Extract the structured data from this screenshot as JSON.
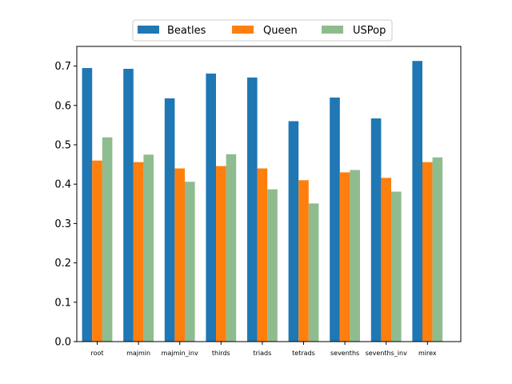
{
  "chart_data": {
    "type": "bar",
    "categories": [
      "root",
      "majmin",
      "majmin_inv",
      "thirds",
      "triads",
      "tetrads",
      "sevenths",
      "sevenths_inv",
      "mirex"
    ],
    "series": [
      {
        "name": "Beatles",
        "color": "#1f77b4",
        "values": [
          0.695,
          0.693,
          0.618,
          0.681,
          0.671,
          0.56,
          0.62,
          0.567,
          0.713
        ]
      },
      {
        "name": "Queen",
        "color": "#ff7f0e",
        "values": [
          0.46,
          0.456,
          0.44,
          0.446,
          0.44,
          0.41,
          0.43,
          0.416,
          0.456
        ]
      },
      {
        "name": "USPop",
        "color": "#8fbc8f",
        "values": [
          0.519,
          0.475,
          0.406,
          0.476,
          0.387,
          0.351,
          0.436,
          0.381,
          0.468
        ]
      }
    ],
    "title": "",
    "xlabel": "",
    "ylabel": "",
    "ylim": [
      0.0,
      0.75
    ],
    "yticks": [
      "0.0",
      "0.1",
      "0.2",
      "0.3",
      "0.4",
      "0.5",
      "0.6",
      "0.7"
    ],
    "grid": false,
    "legend_position": "top-center"
  }
}
